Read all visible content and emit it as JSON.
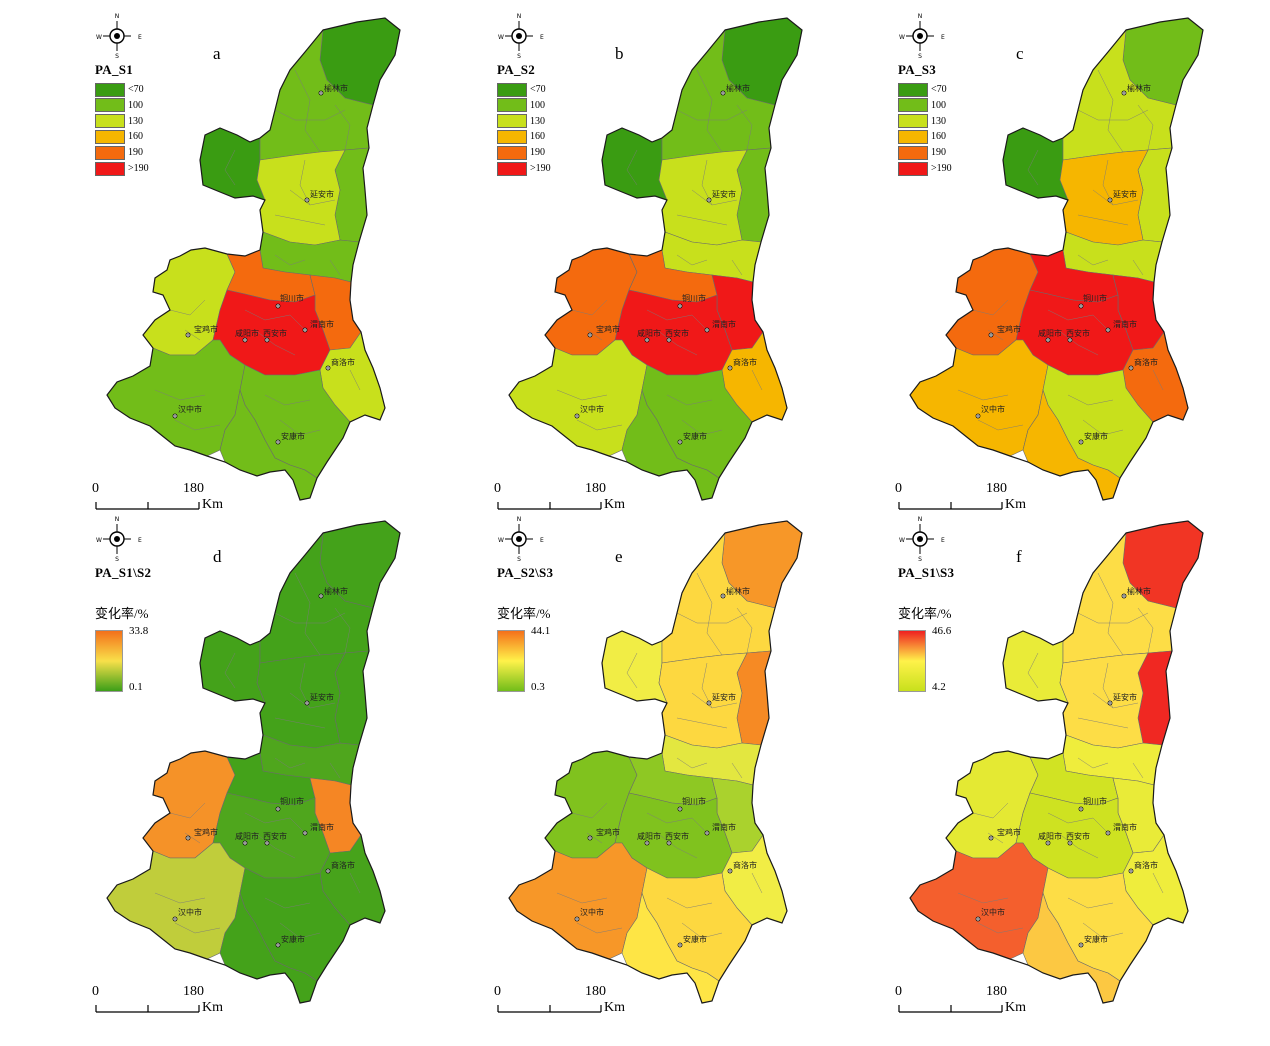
{
  "colors": {
    "class_lt70": "#3a9c12",
    "class_100": "#72bd19",
    "class_130": "#c8e01c",
    "class_160": "#f6b600",
    "class_190": "#f46a0e",
    "class_gt190": "#f01818",
    "border": "#5a5a5a",
    "grad_d": [
      "#f4701a",
      "#f8e04a",
      "#3c9f18"
    ],
    "grad_e": [
      "#f4701a",
      "#fff24a",
      "#72bd19"
    ],
    "grad_f": [
      "#ef2020",
      "#fff24a",
      "#c8e01c"
    ]
  },
  "compass": {
    "n": "N",
    "s": "S",
    "e": "E",
    "w": "W"
  },
  "scale": {
    "zero": "0",
    "distance": "180",
    "unit": "Km"
  },
  "panels": [
    {
      "id": "a",
      "letter": "a",
      "legend_type": "classes",
      "legend_title": "PA_S1",
      "classes": [
        {
          "label": "<70",
          "color_key": "class_lt70"
        },
        {
          "label": "100",
          "color_key": "class_100"
        },
        {
          "label": "130",
          "color_key": "class_130"
        },
        {
          "label": "160",
          "color_key": "class_160"
        },
        {
          "label": "190",
          "color_key": "class_190"
        },
        {
          "label": ">190",
          "color_key": "class_gt190"
        }
      ]
    },
    {
      "id": "b",
      "letter": "b",
      "legend_type": "classes",
      "legend_title": "PA_S2",
      "classes": [
        {
          "label": "<70",
          "color_key": "class_lt70"
        },
        {
          "label": "100",
          "color_key": "class_100"
        },
        {
          "label": "130",
          "color_key": "class_130"
        },
        {
          "label": "160",
          "color_key": "class_160"
        },
        {
          "label": "190",
          "color_key": "class_190"
        },
        {
          "label": ">190",
          "color_key": "class_gt190"
        }
      ]
    },
    {
      "id": "c",
      "letter": "c",
      "legend_type": "classes",
      "legend_title": "PA_S3",
      "classes": [
        {
          "label": "<70",
          "color_key": "class_lt70"
        },
        {
          "label": "100",
          "color_key": "class_100"
        },
        {
          "label": "130",
          "color_key": "class_130"
        },
        {
          "label": "160",
          "color_key": "class_160"
        },
        {
          "label": "190",
          "color_key": "class_190"
        },
        {
          "label": ">190",
          "color_key": "class_gt190"
        }
      ]
    },
    {
      "id": "d",
      "letter": "d",
      "legend_type": "gradient",
      "legend_title": "PA_S1\\S2",
      "legend_subtitle": "变化率/%",
      "grad_key": "grad_d",
      "max": "33.8",
      "min": "0.1"
    },
    {
      "id": "e",
      "letter": "e",
      "legend_type": "gradient",
      "legend_title": "PA_S2\\S3",
      "legend_subtitle": "变化率/%",
      "grad_key": "grad_e",
      "max": "44.1",
      "min": "0.3"
    },
    {
      "id": "f",
      "letter": "f",
      "legend_type": "gradient",
      "legend_title": "PA_S1\\S3",
      "legend_subtitle": "变化率/%",
      "grad_key": "grad_f",
      "max": "46.6",
      "min": "4.2"
    }
  ],
  "cities": [
    {
      "key": "yulin",
      "name": "榆林市"
    },
    {
      "key": "yanan",
      "name": "延安市"
    },
    {
      "key": "tongchuan",
      "name": "铜川市"
    },
    {
      "key": "weinan",
      "name": "渭南市"
    },
    {
      "key": "baoji",
      "name": "宝鸡市"
    },
    {
      "key": "xianyang",
      "name": "咸阳市"
    },
    {
      "key": "xian",
      "name": "西安市"
    },
    {
      "key": "shangluo",
      "name": "商洛市"
    },
    {
      "key": "hanzhong",
      "name": "汉中市"
    },
    {
      "key": "ankang",
      "name": "安康市"
    }
  ],
  "region_values": {
    "a": {
      "yulin_n": "class_lt70",
      "yulin_w": "class_lt70",
      "yulin_s": "class_100",
      "yanan_n": "class_100",
      "yanan_c": "class_130",
      "yanan_s": "class_100",
      "tongchuan": "class_190",
      "weinan": "class_190",
      "baoji": "class_130",
      "guanzhong": "class_gt190",
      "shangluo": "class_130",
      "hanzhong": "class_100",
      "ankang": "class_100",
      "south_se": "class_100"
    },
    "b": {
      "yulin_n": "class_lt70",
      "yulin_w": "class_lt70",
      "yulin_s": "class_100",
      "yanan_n": "class_100",
      "yanan_c": "class_130",
      "yanan_s": "class_130",
      "tongchuan": "class_190",
      "weinan": "class_gt190",
      "baoji": "class_190",
      "guanzhong": "class_gt190",
      "shangluo": "class_160",
      "hanzhong": "class_130",
      "ankang": "class_100",
      "south_se": "class_100"
    },
    "c": {
      "yulin_n": "class_100",
      "yulin_w": "class_lt70",
      "yulin_s": "class_130",
      "yanan_n": "class_130",
      "yanan_c": "class_160",
      "yanan_s": "class_130",
      "tongchuan": "class_gt190",
      "weinan": "class_gt190",
      "baoji": "class_190",
      "guanzhong": "class_gt190",
      "shangluo": "class_190",
      "hanzhong": "class_160",
      "ankang": "class_130",
      "south_se": "class_160"
    },
    "d": {
      "yulin_n": "0.02",
      "yulin_w": "0.02",
      "yulin_s": "0.02",
      "yanan_n": "0.02",
      "yanan_c": "0.02",
      "yanan_s": "0.05",
      "tongchuan": "0.02",
      "weinan": "0.9",
      "baoji": "0.85",
      "guanzhong": "0.05",
      "shangluo": "0.03",
      "hanzhong": "0.35",
      "ankang": "0.02",
      "south_se": "0.02"
    },
    "e": {
      "yulin_n": "0.85",
      "yulin_w": "0.45",
      "yulin_s": "0.6",
      "yanan_n": "0.9",
      "yanan_c": "0.6",
      "yanan_s": "0.4",
      "tongchuan": "0.1",
      "weinan": "0.2",
      "baoji": "0.05",
      "guanzhong": "0.05",
      "shangluo": "0.45",
      "hanzhong": "0.85",
      "ankang": "0.6",
      "south_se": "0.55"
    },
    "f": {
      "yulin_n": "0.95",
      "yulin_w": "0.3",
      "yulin_s": "0.55",
      "yanan_n": "0.98",
      "yanan_c": "0.55",
      "yanan_s": "0.35",
      "tongchuan": "0.08",
      "weinan": "0.3",
      "baoji": "0.25",
      "guanzhong": "0.05",
      "shangluo": "0.35",
      "hanzhong": "0.85",
      "ankang": "0.55",
      "south_se": "0.6"
    }
  }
}
